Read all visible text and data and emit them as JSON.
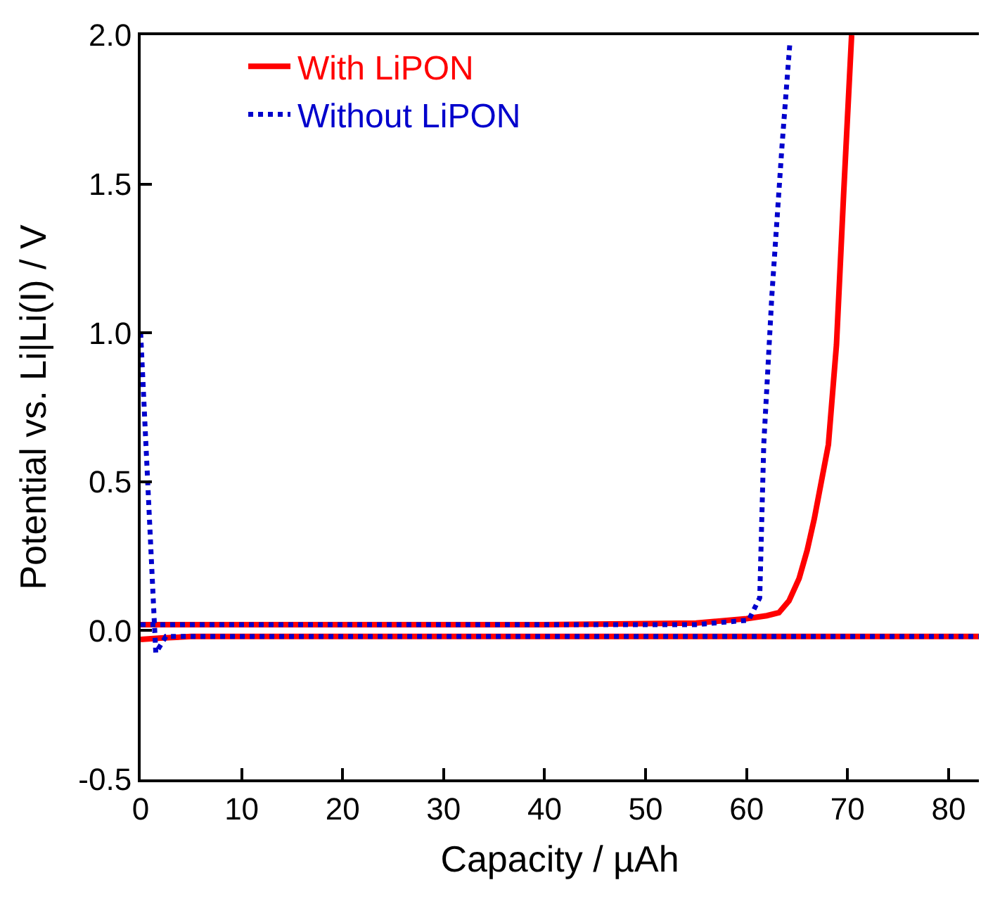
{
  "chart_data": {
    "type": "line",
    "xlabel": "Capacity / µAh",
    "ylabel": "Potential vs. Li|Li(I) / V",
    "xlim": [
      0,
      83
    ],
    "ylim": [
      -0.5,
      2.0
    ],
    "xticks": [
      0,
      10,
      20,
      30,
      40,
      50,
      60,
      70,
      80
    ],
    "yticks": [
      {
        "value": -0.5,
        "label": "-0.5"
      },
      {
        "value": 0,
        "label": "0.0"
      },
      {
        "value": 0.5,
        "label": "0.5"
      },
      {
        "value": 1,
        "label": "1.0"
      },
      {
        "value": 1.5,
        "label": "1.5"
      },
      {
        "value": 2,
        "label": "2.0"
      }
    ],
    "series": [
      {
        "name": "With LiPON",
        "color": "#ff0000",
        "line_style": "solid",
        "x": [
          0,
          20,
          40,
          55,
          60,
          62,
          63.2,
          64.2,
          65.2,
          66,
          66.7,
          68.1,
          68.9,
          69.6,
          70.4
        ],
        "values": [
          0.02,
          0.02,
          0.02,
          0.025,
          0.04,
          0.05,
          0.06,
          0.1,
          0.175,
          0.27,
          0.375,
          0.625,
          0.96,
          1.46,
          2.0
        ]
      },
      {
        "name": "Without LiPON",
        "color": "#0000cc",
        "line_style": "dotted",
        "x": [
          0,
          20,
          40,
          55,
          60.2,
          61.3,
          61.7,
          62.5,
          63.5,
          64.3
        ],
        "values": [
          0.02,
          0.02,
          0.02,
          0.02,
          0.035,
          0.11,
          0.625,
          1.125,
          1.625,
          1.98
        ]
      },
      {
        "color": "#ff0000",
        "line_style": "solid",
        "x": [
          0,
          2,
          5,
          20,
          40,
          60,
          83
        ],
        "values": [
          -0.03,
          -0.025,
          -0.02,
          -0.02,
          -0.02,
          -0.02,
          -0.02
        ]
      },
      {
        "color": "#0000cc",
        "line_style": "dotted",
        "x": [
          0,
          1.5,
          2.5,
          20,
          40,
          60,
          83
        ],
        "values": [
          1.0,
          -0.075,
          -0.02,
          -0.02,
          -0.02,
          -0.02,
          -0.02
        ]
      }
    ],
    "legend": "top left"
  }
}
